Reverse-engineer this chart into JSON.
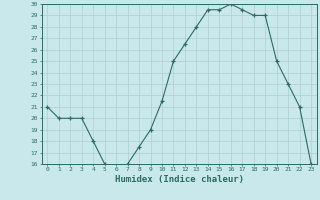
{
  "x": [
    0,
    1,
    2,
    3,
    4,
    5,
    6,
    7,
    8,
    9,
    10,
    11,
    12,
    13,
    14,
    15,
    16,
    17,
    18,
    19,
    20,
    21,
    22,
    23
  ],
  "y": [
    21,
    20,
    20,
    20,
    18,
    16,
    15.5,
    16,
    17.5,
    19,
    21.5,
    25,
    26.5,
    28,
    29.5,
    29.5,
    30,
    29.5,
    29,
    29,
    25,
    23,
    21,
    16
  ],
  "xlabel": "Humidex (Indice chaleur)",
  "ylim": [
    16,
    30
  ],
  "xlim": [
    -0.5,
    23.5
  ],
  "yticks": [
    16,
    17,
    18,
    19,
    20,
    21,
    22,
    23,
    24,
    25,
    26,
    27,
    28,
    29,
    30
  ],
  "xticks": [
    0,
    1,
    2,
    3,
    4,
    5,
    6,
    7,
    8,
    9,
    10,
    11,
    12,
    13,
    14,
    15,
    16,
    17,
    18,
    19,
    20,
    21,
    22,
    23
  ],
  "line_color": "#2d6b5e",
  "marker": "+",
  "bg_color": "#c8e8ec",
  "grid_color": "#b0cdd1",
  "tick_color": "#2d6b5e",
  "spine_color": "#2d6b5e"
}
